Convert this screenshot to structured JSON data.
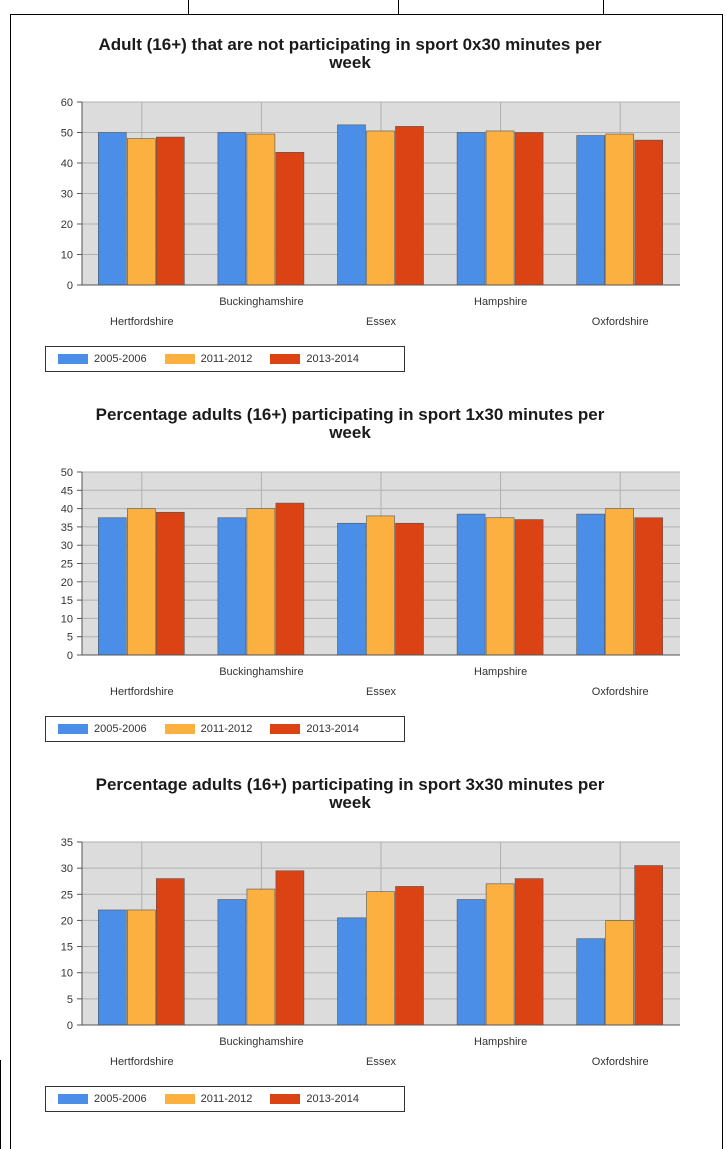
{
  "series_colors": [
    "#4a8ee8",
    "#fcb040",
    "#dc4314"
  ],
  "chart_data": [
    {
      "type": "bar",
      "title": "Adult (16+) that are not participating in sport 0x30 minutes per week",
      "title_lines": [
        "Adult (16+) that are not participating in sport 0x30 minutes per",
        "week"
      ],
      "categories": [
        "Hertfordshire",
        "Buckinghamshire",
        "Essex",
        "Hampshire",
        "Oxfordshire"
      ],
      "ylim": [
        0,
        60
      ],
      "yticks": [
        0,
        10,
        20,
        30,
        40,
        50,
        60
      ],
      "series": [
        {
          "name": "2005-2006",
          "values": [
            50,
            50,
            52.5,
            50,
            49
          ]
        },
        {
          "name": "2011-2012",
          "values": [
            48,
            49.5,
            50.5,
            50.5,
            49.5
          ]
        },
        {
          "name": "2013-2014",
          "values": [
            48.5,
            43.5,
            52,
            50,
            47.5
          ]
        }
      ],
      "legend_position": "bottom-left",
      "grid": true
    },
    {
      "type": "bar",
      "title": "Percentage adults (16+) participating in sport 1x30 minutes per week",
      "title_lines": [
        "Percentage adults (16+) participating in sport 1x30 minutes per",
        "week"
      ],
      "categories": [
        "Hertfordshire",
        "Buckinghamshire",
        "Essex",
        "Hampshire",
        "Oxfordshire"
      ],
      "ylim": [
        0,
        50
      ],
      "yticks": [
        0,
        5,
        10,
        15,
        20,
        25,
        30,
        35,
        40,
        45,
        50
      ],
      "series": [
        {
          "name": "2005-2006",
          "values": [
            37.5,
            37.5,
            36,
            38.5,
            38.5
          ]
        },
        {
          "name": "2011-2012",
          "values": [
            40,
            40,
            38,
            37.5,
            40
          ]
        },
        {
          "name": "2013-2014",
          "values": [
            39,
            41.5,
            36,
            37,
            37.5
          ]
        }
      ],
      "legend_position": "bottom-left",
      "grid": true
    },
    {
      "type": "bar",
      "title": "Percentage adults (16+) participating in sport 3x30 minutes per week",
      "title_lines": [
        "Percentage adults (16+) participating in sport 3x30 minutes per",
        "week"
      ],
      "categories": [
        "Hertfordshire",
        "Buckinghamshire",
        "Essex",
        "Hampshire",
        "Oxfordshire"
      ],
      "ylim": [
        0,
        35
      ],
      "yticks": [
        0,
        5,
        10,
        15,
        20,
        25,
        30,
        35
      ],
      "series": [
        {
          "name": "2005-2006",
          "values": [
            22,
            24,
            20.5,
            24,
            16.5
          ]
        },
        {
          "name": "2011-2012",
          "values": [
            22,
            26,
            25.5,
            27,
            20
          ]
        },
        {
          "name": "2013-2014",
          "values": [
            28,
            29.5,
            26.5,
            28,
            30.5
          ]
        }
      ],
      "legend_position": "bottom-left",
      "grid": true
    }
  ]
}
